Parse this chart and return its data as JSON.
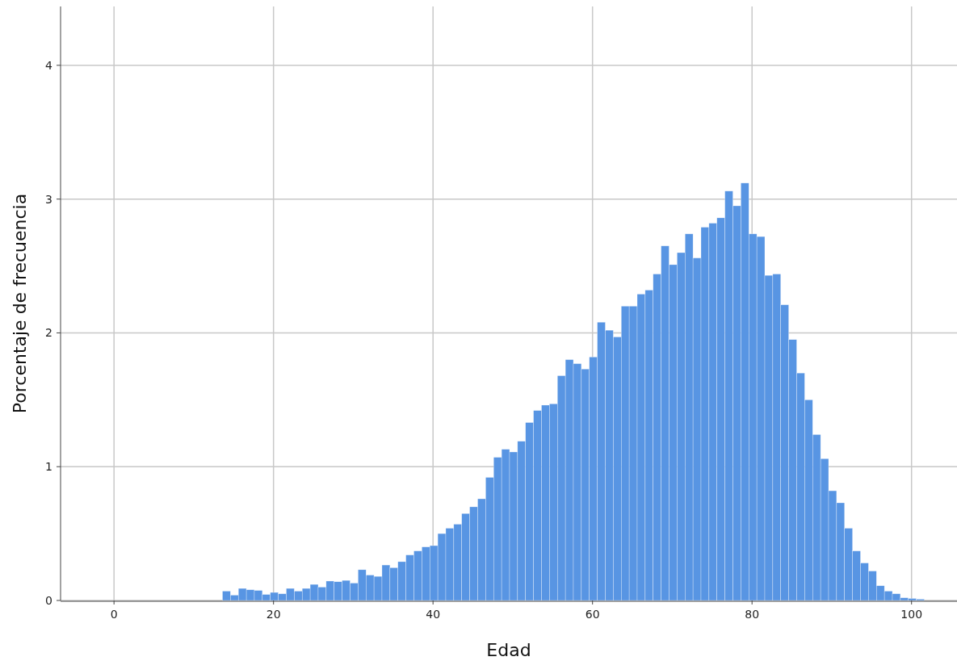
{
  "chart_data": {
    "type": "histogram",
    "xlabel": "Edad",
    "ylabel": "Porcentaje de frecuencia",
    "color": "#5895e3",
    "bins": [
      13.6,
      14.6,
      15.6,
      16.6,
      17.6,
      18.6,
      19.6,
      20.6,
      21.6,
      22.6,
      23.6,
      24.6,
      25.6,
      26.6,
      27.6,
      28.6,
      29.6,
      30.6,
      31.6,
      32.6,
      33.6,
      34.6,
      35.6,
      36.6,
      37.6,
      38.6,
      39.6,
      40.6,
      41.6,
      42.6,
      43.6,
      44.6,
      45.6,
      46.6,
      47.6,
      48.6,
      49.6,
      50.6,
      51.6,
      52.6,
      53.6,
      54.6,
      55.6,
      56.6,
      57.6,
      58.6,
      59.6,
      60.6,
      61.6,
      62.6,
      63.6,
      64.6,
      65.6,
      66.6,
      67.6,
      68.6,
      69.6,
      70.6,
      71.6,
      72.6,
      73.6,
      74.6,
      75.6,
      76.6,
      77.6,
      78.6,
      79.6,
      80.6,
      81.6,
      82.6,
      83.6,
      84.6,
      85.6,
      86.6,
      87.6,
      88.6,
      89.6,
      90.6,
      91.6,
      92.6,
      93.6,
      94.6,
      95.6,
      96.6,
      97.6,
      98.6,
      99.6,
      100.6,
      101.6
    ],
    "values": [
      0.07,
      0.04,
      0.09,
      0.08,
      0.075,
      0.045,
      0.06,
      0.05,
      0.09,
      0.07,
      0.09,
      0.12,
      0.1,
      0.145,
      0.14,
      0.15,
      0.13,
      0.23,
      0.19,
      0.18,
      0.265,
      0.245,
      0.29,
      0.34,
      0.37,
      0.4,
      0.41,
      0.5,
      0.54,
      0.57,
      0.65,
      0.7,
      0.76,
      0.92,
      1.07,
      1.13,
      1.11,
      1.19,
      1.33,
      1.42,
      1.46,
      1.47,
      1.68,
      1.8,
      1.77,
      1.73,
      1.82,
      2.08,
      2.02,
      1.97,
      2.2,
      2.2,
      2.29,
      2.32,
      2.44,
      2.65,
      2.51,
      2.6,
      2.74,
      2.56,
      2.79,
      2.82,
      2.86,
      3.06,
      2.95,
      3.12,
      2.74,
      2.72,
      2.43,
      2.44,
      2.21,
      1.95,
      1.7,
      1.5,
      1.24,
      1.06,
      0.82,
      0.73,
      0.54,
      0.37,
      0.28,
      0.22,
      0.11,
      0.07,
      0.05,
      0.02,
      0.015,
      0.01
    ],
    "xlim": [
      -6.7,
      105.7
    ],
    "xticks": [
      0,
      20,
      40,
      60,
      80,
      100
    ],
    "ylim": [
      0,
      4.44
    ],
    "yticks": [
      0,
      1,
      2,
      3,
      4
    ],
    "grid": true
  }
}
